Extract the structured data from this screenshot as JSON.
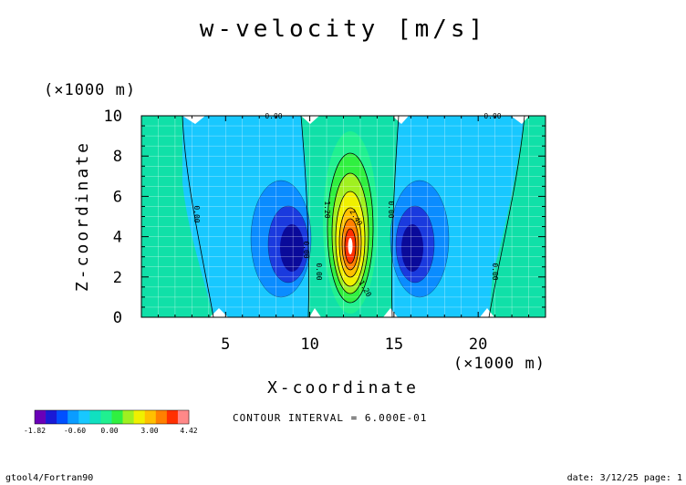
{
  "chart_data": {
    "type": "heatmap",
    "title": "w-velocity [m/s]",
    "xlabel": "X-coordinate",
    "ylabel": "Z-coordinate",
    "x_unit": "(×1000 m)",
    "y_unit": "(×1000 m)",
    "xlim": [
      0,
      24
    ],
    "ylim": [
      0,
      10
    ],
    "x_ticks": [
      "5",
      "10",
      "15",
      "20"
    ],
    "y_ticks": [
      "0",
      "2",
      "4",
      "6",
      "8",
      "10"
    ],
    "contour_interval_label": "CONTOUR INTERVAL = 6.000E-01",
    "colorbar": {
      "min_label": "-1.82",
      "mid_label": "-0.60",
      "overlap_label": "0.00",
      "label_3": "3.00",
      "max_label": "4.42",
      "colors": [
        "#6a00b8",
        "#1a1ad6",
        "#0050ff",
        "#0a9cff",
        "#18c8ff",
        "#10e0c0",
        "#20f090",
        "#30f040",
        "#a0f020",
        "#f0f000",
        "#ffc000",
        "#ff8000",
        "#ff3000",
        "#ff8888"
      ]
    },
    "contour_labels": [
      "0.00",
      "0.00",
      "0.00",
      "0.00",
      "0.00",
      "0.00",
      "0.00",
      "1.20",
      "2.40",
      "1.20"
    ],
    "fields": {
      "central_updraft": {
        "x_center": 12.5,
        "z_center": 3.5,
        "max": 4.42
      },
      "left_downdraft": {
        "x_center": 9.0,
        "z_center": 3.5,
        "min": -1.82
      },
      "right_downdraft": {
        "x_center": 16.0,
        "z_center": 3.5,
        "min": -1.82
      }
    }
  },
  "footer": {
    "left": "gtool4/Fortran90",
    "right": "date: 3/12/25 page: 1"
  }
}
